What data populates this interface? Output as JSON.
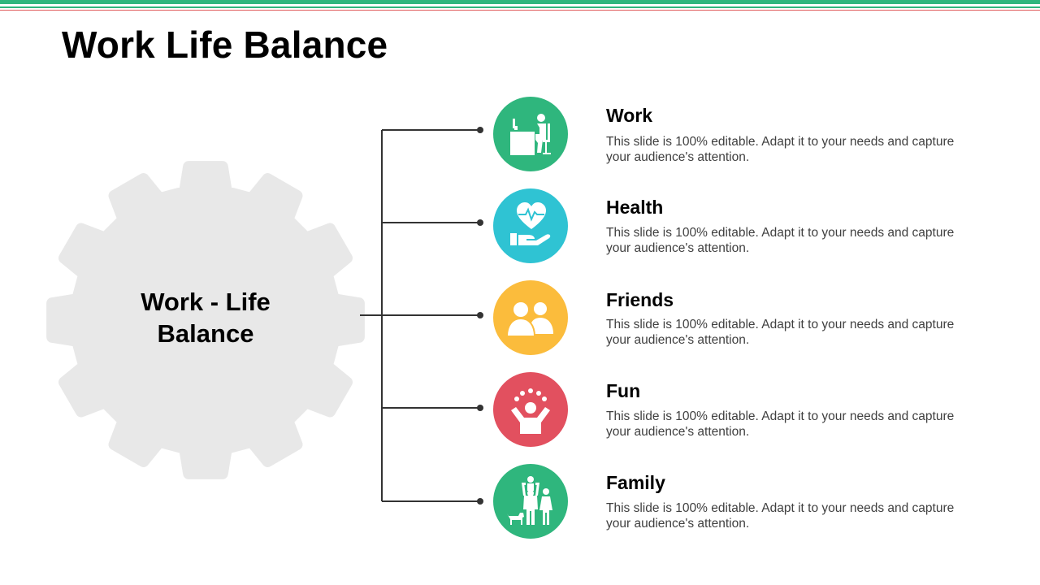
{
  "title": "Work Life Balance",
  "center_label": "Work - Life Balance",
  "colors": {
    "top_bar": "#2fb67d",
    "accent_line": "#e05a5a",
    "gear": "#e8e8e8",
    "connector": "#333333"
  },
  "items": [
    {
      "title": "Work",
      "description": "This slide is 100% editable. Adapt it to your needs and capture your audience's attention.",
      "color": "#2fb67d",
      "icon": "desk-worker-icon"
    },
    {
      "title": "Health",
      "description": "This slide is 100% editable. Adapt it to your needs and capture your audience's attention.",
      "color": "#2fc3d3",
      "icon": "heart-hand-icon"
    },
    {
      "title": "Friends",
      "description": "This slide is 100% editable. Adapt it to your needs and capture your audience's attention.",
      "color": "#fbbc3c",
      "icon": "people-icon"
    },
    {
      "title": "Fun",
      "description": "This slide is 100% editable. Adapt it to your needs and capture your audience's attention.",
      "color": "#e2505f",
      "icon": "juggling-person-icon"
    },
    {
      "title": "Family",
      "description": "This slide is 100% editable. Adapt it to your needs and capture your audience's attention.",
      "color": "#2fb67d",
      "icon": "family-icon"
    }
  ]
}
